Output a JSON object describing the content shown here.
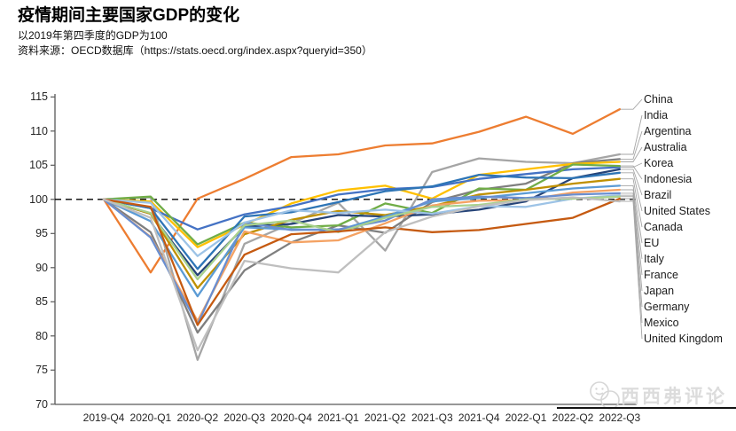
{
  "header": {
    "title": "疫情期间主要国家GDP的变化",
    "subtitle": "以2019年第四季度的GDP为100",
    "source": "资料来源：OECD数据库（https://stats.oecd.org/index.aspx?queryid=350）"
  },
  "chart_data": {
    "type": "line",
    "x": [
      "2019-Q4",
      "2020-Q1",
      "2020-Q2",
      "2020-Q3",
      "2020-Q4",
      "2021-Q1",
      "2021-Q2",
      "2021-Q3",
      "2021-Q4",
      "2022-Q1",
      "2022-Q2",
      "2022-Q3"
    ],
    "ylim": [
      70,
      115
    ],
    "yticks": [
      70,
      75,
      80,
      85,
      90,
      95,
      100,
      105,
      110,
      115
    ],
    "baseline": 100,
    "grid": false,
    "legend_position": "right",
    "series": [
      {
        "name": "China",
        "color": "#ED7D31",
        "values": [
          100,
          89.3,
          100.1,
          103.0,
          106.2,
          106.6,
          107.9,
          108.2,
          109.9,
          112.1,
          109.6,
          113.2
        ]
      },
      {
        "name": "India",
        "color": "#A5A5A5",
        "values": [
          100,
          100.3,
          76.5,
          93.5,
          96.5,
          99.5,
          92.5,
          104.0,
          106.0,
          105.5,
          105.3,
          106.6
        ]
      },
      {
        "name": "Argentina",
        "color": "#7F7F7F",
        "values": [
          100,
          95.2,
          80.5,
          89.6,
          93.7,
          96.2,
          95.1,
          99.6,
          101.4,
          102.3,
          105.3,
          105.9
        ]
      },
      {
        "name": "Australia",
        "color": "#FFC000",
        "values": [
          100,
          99.7,
          93.0,
          96.3,
          99.4,
          101.3,
          102.0,
          100.1,
          103.6,
          104.4,
          105.2,
          105.5
        ]
      },
      {
        "name": "Korea",
        "color": "#4472C4",
        "values": [
          100,
          98.7,
          95.6,
          97.8,
          99.0,
          100.7,
          101.5,
          101.8,
          103.0,
          103.7,
          104.4,
          104.7
        ]
      },
      {
        "name": "Indonesia",
        "color": "#70AD47",
        "values": [
          100,
          100.4,
          93.4,
          96.6,
          95.9,
          96.2,
          99.4,
          98.0,
          101.6,
          101.4,
          105.1,
          104.9
        ]
      },
      {
        "name": "Brazil",
        "color": "#264478",
        "values": [
          100,
          97.9,
          88.9,
          96.0,
          96.4,
          97.7,
          97.5,
          97.8,
          98.5,
          99.7,
          103.1,
          104.4
        ]
      },
      {
        "name": "United States",
        "color": "#2E75B6",
        "values": [
          100,
          98.7,
          89.8,
          97.5,
          98.1,
          99.6,
          101.2,
          101.9,
          103.6,
          103.2,
          103.1,
          103.9
        ]
      },
      {
        "name": "Canada",
        "color": "#BF9000",
        "values": [
          100,
          97.9,
          87.0,
          94.9,
          97.0,
          98.3,
          97.7,
          99.0,
          100.7,
          101.4,
          102.3,
          103.0
        ]
      },
      {
        "name": "EU",
        "color": "#5B9BD5",
        "values": [
          100,
          96.8,
          85.8,
          95.9,
          95.6,
          95.5,
          97.5,
          99.7,
          100.2,
          100.9,
          101.6,
          102.0
        ]
      },
      {
        "name": "Italy",
        "color": "#F4A263",
        "values": [
          100,
          94.5,
          82.2,
          95.3,
          93.7,
          94.0,
          96.5,
          99.1,
          99.8,
          99.9,
          101.0,
          101.4
        ]
      },
      {
        "name": "France",
        "color": "#698ED0",
        "values": [
          100,
          94.4,
          81.7,
          96.6,
          95.5,
          95.6,
          96.9,
          100.0,
          100.4,
          100.2,
          100.7,
          100.9
        ]
      },
      {
        "name": "Japan",
        "color": "#9DC3E6",
        "values": [
          100,
          99.5,
          91.7,
          96.6,
          98.4,
          98.0,
          98.5,
          97.9,
          99.0,
          98.9,
          100.1,
          100.6
        ]
      },
      {
        "name": "Germany",
        "color": "#A9D18E",
        "values": [
          100,
          98.0,
          88.3,
          96.2,
          96.9,
          95.2,
          97.3,
          98.9,
          99.2,
          100.0,
          100.1,
          100.4
        ]
      },
      {
        "name": "Mexico",
        "color": "#C55A11",
        "values": [
          100,
          98.9,
          81.6,
          91.9,
          94.9,
          95.3,
          95.9,
          95.2,
          95.5,
          96.4,
          97.3,
          100.1
        ]
      },
      {
        "name": "United Kingdom",
        "color": "#BFBFBF",
        "values": [
          100,
          97.3,
          77.9,
          91.0,
          89.9,
          89.3,
          95.2,
          97.5,
          99.0,
          99.9,
          100.3,
          99.7
        ]
      }
    ]
  },
  "watermark": {
    "text": "西西弗评论"
  },
  "colors": {
    "axis": "#595959",
    "tick_label": "#262626",
    "baseline": "#000000",
    "leader": "#A6A6A6",
    "watermark": "#DCDCDC",
    "underline": "#141414"
  }
}
